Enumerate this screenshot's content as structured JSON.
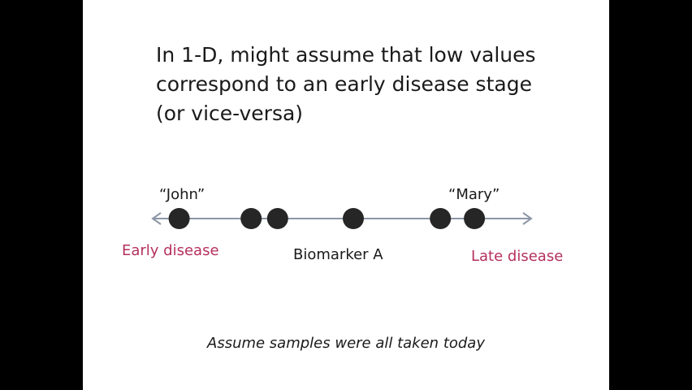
{
  "slide": {
    "heading_lines": [
      "In 1-D, might assume that low values",
      "correspond to an early disease stage",
      "(or vice-versa)"
    ],
    "footnote": "Assume samples were all taken today"
  },
  "diagram": {
    "axis_label": "Biomarker A",
    "early_label": "Early disease",
    "late_label": "Late disease",
    "john_label": "“John”",
    "mary_label": "“Mary”",
    "samples": [
      0.07,
      0.26,
      0.33,
      0.53,
      0.76,
      0.85
    ]
  },
  "colors": {
    "stage": "#b5305e",
    "dot": "#262626",
    "axis": "#8c96a6"
  }
}
